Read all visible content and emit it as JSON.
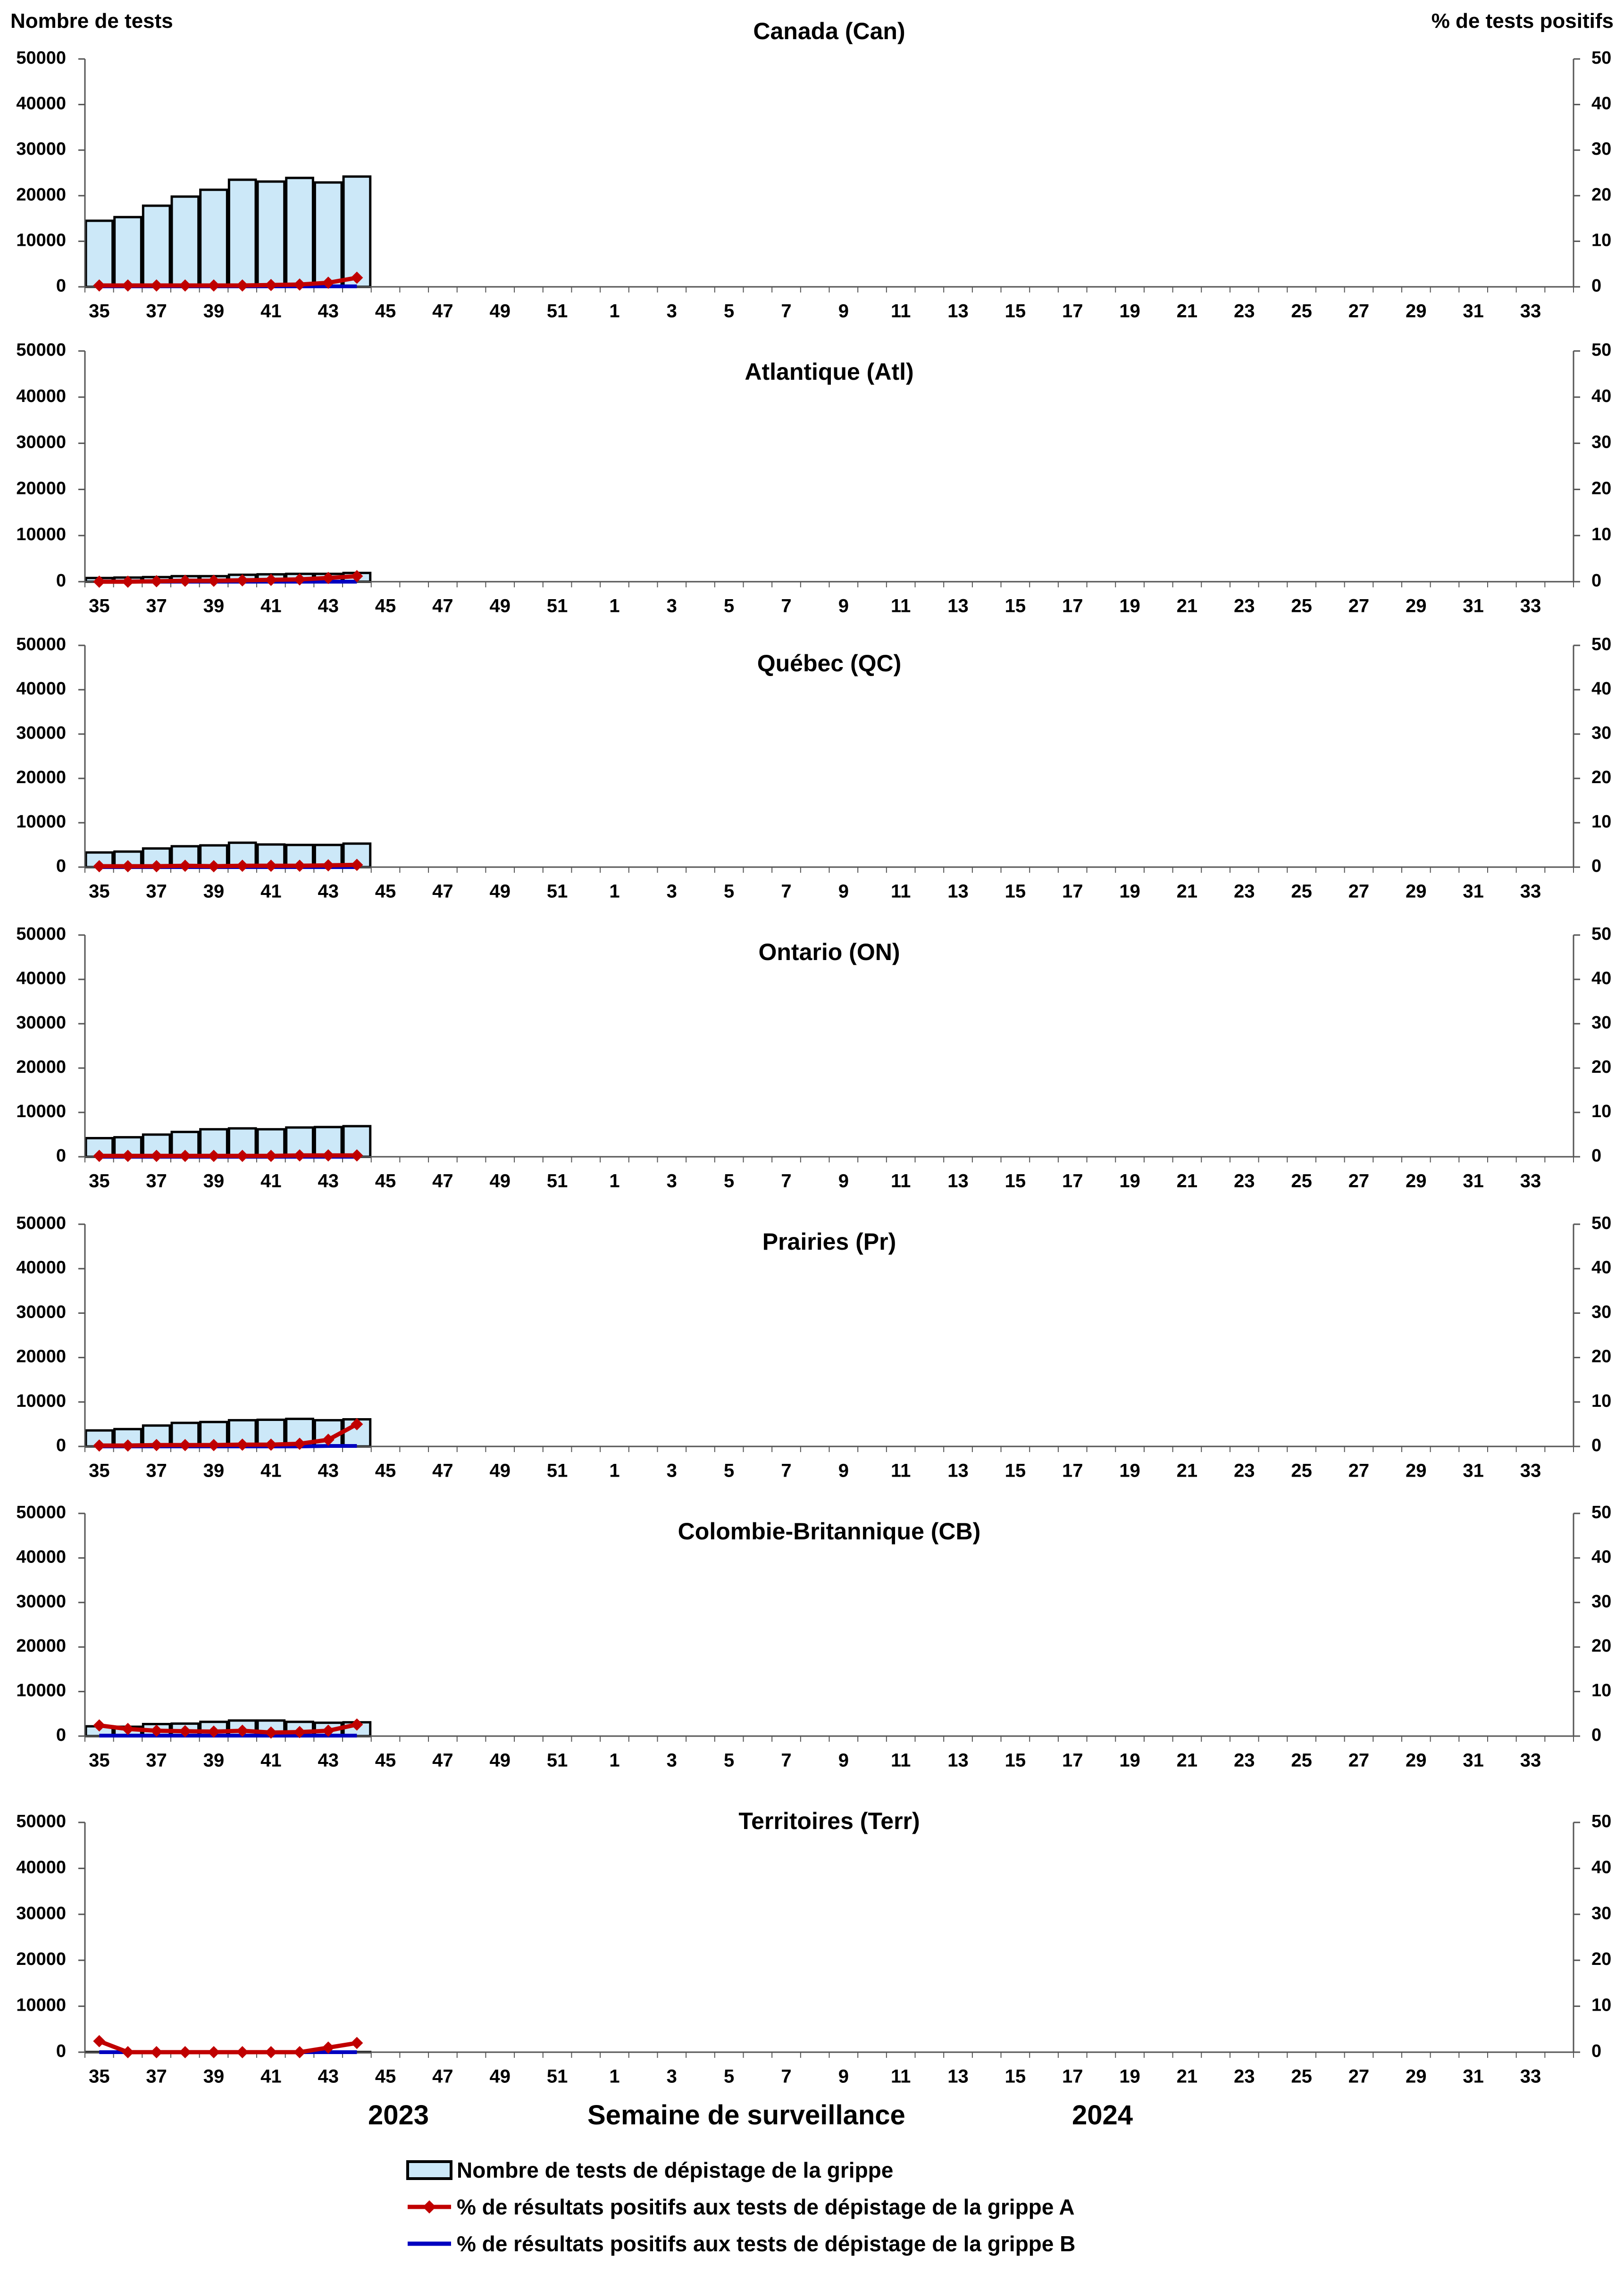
{
  "left_axis_title": "Nombre de tests",
  "right_axis_title": "% de tests positifs",
  "x_axis_title": "Semaine de surveillance",
  "year_labels": [
    "2023",
    "2024"
  ],
  "legend": {
    "bars": "Nombre de tests de dépistage de la grippe",
    "line_a": "% de résultats positifs aux tests de dépistage de la grippe A",
    "line_b": "% de résultats positifs aux tests de dépistage de la grippe B"
  },
  "colors": {
    "bar_fill": "#cce8f8",
    "bar_stroke": "#000000",
    "line_a": "#c00000",
    "line_b": "#0000c0"
  },
  "chart_data": [
    {
      "type": "bar",
      "title": "Canada (Can)",
      "x_tick_labels": [
        "35",
        "37",
        "39",
        "41",
        "43",
        "45",
        "47",
        "49",
        "51",
        "1",
        "3",
        "5",
        "7",
        "9",
        "11",
        "13",
        "15",
        "17",
        "19",
        "21",
        "23",
        "25",
        "27",
        "29",
        "31",
        "33"
      ],
      "weeks": [
        "35",
        "36",
        "37",
        "38",
        "39",
        "40",
        "41",
        "42",
        "43",
        "44"
      ],
      "y_left_ticks": [
        "0",
        "10000",
        "20000",
        "30000",
        "40000",
        "50000"
      ],
      "y_right_ticks": [
        "0",
        "10",
        "20",
        "30",
        "40",
        "50"
      ],
      "ylim_left": [
        0,
        50000
      ],
      "ylim_right": [
        0,
        50
      ],
      "series": [
        {
          "name": "Nombre de tests de dépistage de la grippe",
          "values": [
            14500,
            15300,
            17800,
            19800,
            21300,
            23500,
            23100,
            23900,
            22900,
            24200
          ]
        },
        {
          "name": "% de résultats positifs aux tests de dépistage de la grippe A",
          "values": [
            0.3,
            0.3,
            0.3,
            0.3,
            0.3,
            0.3,
            0.4,
            0.5,
            0.9,
            2.0
          ]
        },
        {
          "name": "% de résultats positifs aux tests de dépistage de la grippe B",
          "values": [
            0.1,
            0.1,
            0.1,
            0.1,
            0.1,
            0.1,
            0.1,
            0.1,
            0.1,
            0.1
          ]
        }
      ]
    },
    {
      "type": "bar",
      "title": "Atlantique (Atl)",
      "x_tick_labels": [
        "35",
        "37",
        "39",
        "41",
        "43",
        "45",
        "47",
        "49",
        "51",
        "1",
        "3",
        "5",
        "7",
        "9",
        "11",
        "13",
        "15",
        "17",
        "19",
        "21",
        "23",
        "25",
        "27",
        "29",
        "31",
        "33"
      ],
      "weeks": [
        "35",
        "36",
        "37",
        "38",
        "39",
        "40",
        "41",
        "42",
        "43",
        "44"
      ],
      "y_left_ticks": [
        "0",
        "10000",
        "20000",
        "30000",
        "40000",
        "50000"
      ],
      "y_right_ticks": [
        "0",
        "10",
        "20",
        "30",
        "40",
        "50"
      ],
      "ylim_left": [
        0,
        50000
      ],
      "ylim_right": [
        0,
        50
      ],
      "series": [
        {
          "name": "Nombre de tests de dépistage de la grippe",
          "values": [
            800,
            900,
            1000,
            1200,
            1200,
            1500,
            1600,
            1700,
            1700,
            1900
          ]
        },
        {
          "name": "% de résultats positifs aux tests de dépistage de la grippe A",
          "values": [
            0.0,
            0.0,
            0.1,
            0.2,
            0.2,
            0.3,
            0.4,
            0.5,
            0.8,
            1.2
          ]
        },
        {
          "name": "% de résultats positifs aux tests de dépistage de la grippe B",
          "values": [
            0.0,
            0.0,
            0.0,
            0.0,
            0.0,
            0.0,
            0.0,
            0.0,
            0.0,
            0.0
          ]
        }
      ]
    },
    {
      "type": "bar",
      "title": "Québec (QC)",
      "x_tick_labels": [
        "35",
        "37",
        "39",
        "41",
        "43",
        "45",
        "47",
        "49",
        "51",
        "1",
        "3",
        "5",
        "7",
        "9",
        "11",
        "13",
        "15",
        "17",
        "19",
        "21",
        "23",
        "25",
        "27",
        "29",
        "31",
        "33"
      ],
      "weeks": [
        "35",
        "36",
        "37",
        "38",
        "39",
        "40",
        "41",
        "42",
        "43",
        "44"
      ],
      "y_left_ticks": [
        "0",
        "10000",
        "20000",
        "30000",
        "40000",
        "50000"
      ],
      "y_right_ticks": [
        "0",
        "10",
        "20",
        "30",
        "40",
        "50"
      ],
      "ylim_left": [
        0,
        50000
      ],
      "ylim_right": [
        0,
        50
      ],
      "series": [
        {
          "name": "Nombre de tests de dépistage de la grippe",
          "values": [
            3300,
            3500,
            4200,
            4700,
            4900,
            5500,
            5100,
            5000,
            5000,
            5300
          ]
        },
        {
          "name": "% de résultats positifs aux tests de dépistage de la grippe A",
          "values": [
            0.2,
            0.2,
            0.2,
            0.3,
            0.2,
            0.3,
            0.3,
            0.3,
            0.4,
            0.5
          ]
        },
        {
          "name": "% de résultats positifs aux tests de dépistage de la grippe B",
          "values": [
            0.0,
            0.0,
            0.0,
            0.0,
            0.0,
            0.0,
            0.0,
            0.0,
            0.0,
            0.0
          ]
        }
      ]
    },
    {
      "type": "bar",
      "title": "Ontario (ON)",
      "x_tick_labels": [
        "35",
        "37",
        "39",
        "41",
        "43",
        "45",
        "47",
        "49",
        "51",
        "1",
        "3",
        "5",
        "7",
        "9",
        "11",
        "13",
        "15",
        "17",
        "19",
        "21",
        "23",
        "25",
        "27",
        "29",
        "31",
        "33"
      ],
      "weeks": [
        "35",
        "36",
        "37",
        "38",
        "39",
        "40",
        "41",
        "42",
        "43",
        "44"
      ],
      "y_left_ticks": [
        "0",
        "10000",
        "20000",
        "30000",
        "40000",
        "50000"
      ],
      "y_right_ticks": [
        "0",
        "10",
        "20",
        "30",
        "40",
        "50"
      ],
      "ylim_left": [
        0,
        50000
      ],
      "ylim_right": [
        0,
        50
      ],
      "series": [
        {
          "name": "Nombre de tests de dépistage de la grippe",
          "values": [
            4200,
            4400,
            5000,
            5600,
            6200,
            6400,
            6200,
            6600,
            6700,
            6900
          ]
        },
        {
          "name": "% de résultats positifs aux tests de dépistage de la grippe A",
          "values": [
            0.2,
            0.2,
            0.2,
            0.2,
            0.2,
            0.2,
            0.2,
            0.3,
            0.3,
            0.3
          ]
        },
        {
          "name": "% de résultats positifs aux tests de dépistage de la grippe B",
          "values": [
            0.0,
            0.0,
            0.0,
            0.0,
            0.0,
            0.0,
            0.0,
            0.0,
            0.0,
            0.0
          ]
        }
      ]
    },
    {
      "type": "bar",
      "title": "Prairies (Pr)",
      "x_tick_labels": [
        "35",
        "37",
        "39",
        "41",
        "43",
        "45",
        "47",
        "49",
        "51",
        "1",
        "3",
        "5",
        "7",
        "9",
        "11",
        "13",
        "15",
        "17",
        "19",
        "21",
        "23",
        "25",
        "27",
        "29",
        "31",
        "33"
      ],
      "weeks": [
        "35",
        "36",
        "37",
        "38",
        "39",
        "40",
        "41",
        "42",
        "43",
        "44"
      ],
      "y_left_ticks": [
        "0",
        "10000",
        "20000",
        "30000",
        "40000",
        "50000"
      ],
      "y_right_ticks": [
        "0",
        "10",
        "20",
        "30",
        "40",
        "50"
      ],
      "ylim_left": [
        0,
        50000
      ],
      "ylim_right": [
        0,
        50
      ],
      "series": [
        {
          "name": "Nombre de tests de dépistage de la grippe",
          "values": [
            3600,
            3900,
            4700,
            5300,
            5500,
            5900,
            6000,
            6200,
            5900,
            6100
          ]
        },
        {
          "name": "% de résultats positifs aux tests de dépistage de la grippe A",
          "values": [
            0.2,
            0.2,
            0.3,
            0.3,
            0.3,
            0.4,
            0.4,
            0.6,
            1.5,
            5.0
          ]
        },
        {
          "name": "% de résultats positifs aux tests de dépistage de la grippe B",
          "values": [
            0.0,
            0.0,
            0.0,
            0.0,
            0.0,
            0.0,
            0.0,
            0.0,
            0.1,
            0.1
          ]
        }
      ]
    },
    {
      "type": "bar",
      "title": "Colombie-Britannique (CB)",
      "x_tick_labels": [
        "35",
        "37",
        "39",
        "41",
        "43",
        "45",
        "47",
        "49",
        "51",
        "1",
        "3",
        "5",
        "7",
        "9",
        "11",
        "13",
        "15",
        "17",
        "19",
        "21",
        "23",
        "25",
        "27",
        "29",
        "31",
        "33"
      ],
      "weeks": [
        "35",
        "36",
        "37",
        "38",
        "39",
        "40",
        "41",
        "42",
        "43",
        "44"
      ],
      "y_left_ticks": [
        "0",
        "10000",
        "20000",
        "30000",
        "40000",
        "50000"
      ],
      "y_right_ticks": [
        "0",
        "10",
        "20",
        "30",
        "40",
        "50"
      ],
      "ylim_left": [
        0,
        50000
      ],
      "ylim_right": [
        0,
        50
      ],
      "series": [
        {
          "name": "Nombre de tests de dépistage de la grippe",
          "values": [
            2200,
            2100,
            2700,
            2800,
            3200,
            3500,
            3500,
            3200,
            3000,
            3100
          ]
        },
        {
          "name": "% de résultats positifs aux tests de dépistage de la grippe A",
          "values": [
            2.4,
            1.6,
            1.2,
            1.1,
            1.0,
            1.2,
            0.8,
            0.9,
            1.2,
            2.6
          ]
        },
        {
          "name": "% de résultats positifs aux tests de dépistage de la grippe B",
          "values": [
            0.1,
            0.1,
            0.1,
            0.1,
            0.1,
            0.1,
            0.1,
            0.1,
            0.1,
            0.1
          ]
        }
      ]
    },
    {
      "type": "bar",
      "title": "Territoires (Terr)",
      "x_tick_labels": [
        "35",
        "37",
        "39",
        "41",
        "43",
        "45",
        "47",
        "49",
        "51",
        "1",
        "3",
        "5",
        "7",
        "9",
        "11",
        "13",
        "15",
        "17",
        "19",
        "21",
        "23",
        "25",
        "27",
        "29",
        "31",
        "33"
      ],
      "weeks": [
        "35",
        "36",
        "37",
        "38",
        "39",
        "40",
        "41",
        "42",
        "43",
        "44"
      ],
      "y_left_ticks": [
        "0",
        "10000",
        "20000",
        "30000",
        "40000",
        "50000"
      ],
      "y_right_ticks": [
        "0",
        "10",
        "20",
        "30",
        "40",
        "50"
      ],
      "ylim_left": [
        0,
        50000
      ],
      "ylim_right": [
        0,
        50
      ],
      "series": [
        {
          "name": "Nombre de tests de dépistage de la grippe",
          "values": [
            40,
            40,
            40,
            40,
            40,
            40,
            40,
            40,
            40,
            40
          ]
        },
        {
          "name": "% de résultats positifs aux tests de dépistage de la grippe A",
          "values": [
            2.4,
            0.0,
            0.0,
            0.0,
            0.0,
            0.0,
            0.0,
            0.0,
            1.0,
            2.0
          ]
        },
        {
          "name": "% de résultats positifs aux tests de dépistage de la grippe B",
          "values": [
            0.0,
            0.0,
            0.0,
            0.0,
            0.0,
            0.0,
            0.0,
            0.0,
            0.0,
            0.0
          ]
        }
      ]
    }
  ]
}
